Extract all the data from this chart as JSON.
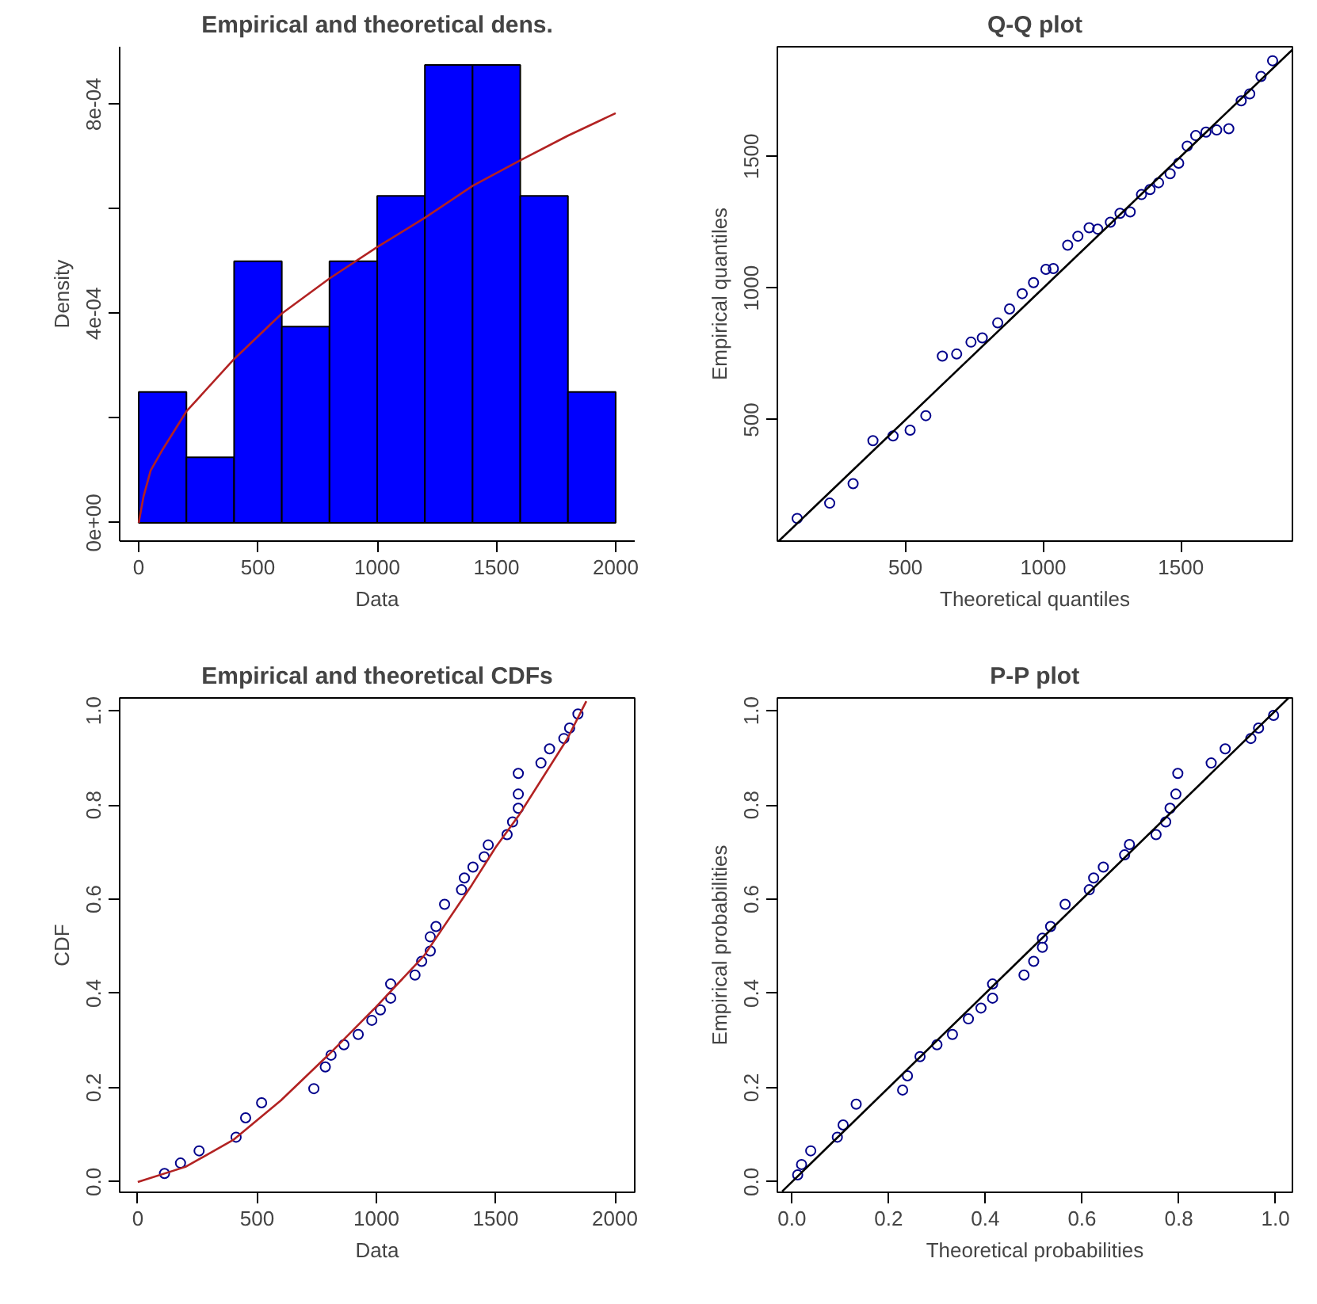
{
  "chart_data": [
    {
      "type": "histogram",
      "title": "Empirical and theoretical dens.",
      "xlabel": "Data",
      "ylabel": "Density",
      "color": "#0000ff",
      "grid": false,
      "bins": [
        0,
        200,
        400,
        600,
        800,
        1000,
        1200,
        1400,
        1600,
        1800,
        2000
      ],
      "values": [
        0.00025,
        0.000125,
        0.0005,
        0.000375,
        0.0005,
        0.000625,
        0.000875,
        0.000875,
        0.000625,
        0.00025
      ],
      "xlim": [
        -80,
        2080
      ],
      "ylim": [
        -3.5e-05,
        0.00091
      ],
      "xticks": [
        0,
        500,
        1000,
        1500,
        2000
      ],
      "yticks": [
        {
          "value": 0,
          "label": "0e+00"
        },
        {
          "value": 0.0002,
          "label": null
        },
        {
          "value": 0.0004,
          "label": "4e-04"
        },
        {
          "value": 0.0006,
          "label": null
        },
        {
          "value": 0.0008,
          "label": "8e-04"
        }
      ],
      "series": [
        {
          "type": "line",
          "color": "#b22222",
          "x": [
            0,
            20,
            50,
            100,
            200,
            400,
            600,
            800,
            1000,
            1200,
            1400,
            1600,
            1800,
            2000
          ],
          "values": [
            0,
            5e-05,
            0.0001,
            0.00014,
            0.000213,
            0.000313,
            0.0004,
            0.000467,
            0.000527,
            0.000583,
            0.000644,
            0.000693,
            0.00074,
            0.000783
          ]
        }
      ]
    },
    {
      "type": "scatter",
      "title": "Q-Q plot",
      "xlabel": "Theoretical quantiles",
      "ylabel": "Empirical quantiles",
      "grid": false,
      "xlim": [
        35,
        1905
      ],
      "ylim": [
        40,
        1916
      ],
      "xticks": [
        500,
        1000,
        1500
      ],
      "yticks": [
        500,
        1000,
        1500
      ],
      "series": [
        {
          "type": "scatter",
          "marker": "circle",
          "color": "#00008b",
          "x": [
            107,
            225,
            310,
            382,
            455,
            517,
            574,
            634,
            686,
            738,
            779,
            835,
            878,
            924,
            965,
            1010,
            1037,
            1089,
            1126,
            1167,
            1198,
            1244,
            1279,
            1316,
            1357,
            1388,
            1419,
            1461,
            1492,
            1523,
            1554,
            1591,
            1630,
            1674,
            1719,
            1750,
            1791,
            1833
          ],
          "values": [
            126,
            184,
            258,
            421,
            439,
            461,
            516,
            742,
            750,
            795,
            811,
            868,
            921,
            979,
            1021,
            1071,
            1074,
            1163,
            1197,
            1229,
            1224,
            1250,
            1284,
            1289,
            1355,
            1374,
            1400,
            1434,
            1474,
            1539,
            1579,
            1592,
            1600,
            1605,
            1711,
            1737,
            1803,
            1863
          ]
        },
        {
          "type": "line",
          "color": "#000000",
          "x": [
            40,
            1905
          ],
          "values": [
            40,
            1905
          ]
        }
      ]
    },
    {
      "type": "scatter",
      "title": "Empirical and theoretical CDFs",
      "xlabel": "Data",
      "ylabel": "CDF",
      "grid": false,
      "xlim": [
        -76,
        2083
      ],
      "ylim": [
        -0.022,
        1.027
      ],
      "xticks": [
        0,
        500,
        1000,
        1500,
        2000
      ],
      "yticks": [
        {
          "value": 0,
          "label": "0.0"
        },
        0.2,
        0.4,
        0.6,
        0.8,
        {
          "value": 1,
          "label": "1.0"
        }
      ],
      "series": [
        {
          "type": "scatter",
          "marker": "circle",
          "color": "#00008b",
          "x": [
            112,
            179,
            257,
            412,
            452,
            519,
            738,
            786,
            810,
            864,
            924,
            981,
            1017,
            1060,
            1060,
            1162,
            1190,
            1226,
            1226,
            1250,
            1286,
            1357,
            1369,
            1405,
            1452,
            1469,
            1548,
            1571,
            1595,
            1595,
            1595,
            1690,
            1726,
            1786,
            1810,
            1845
          ],
          "values": [
            0.018,
            0.04,
            0.066,
            0.095,
            0.136,
            0.168,
            0.198,
            0.244,
            0.269,
            0.291,
            0.313,
            0.343,
            0.365,
            0.39,
            0.42,
            0.439,
            0.468,
            0.49,
            0.52,
            0.542,
            0.589,
            0.62,
            0.645,
            0.668,
            0.69,
            0.715,
            0.737,
            0.764,
            0.793,
            0.823,
            0.867,
            0.889,
            0.919,
            0.941,
            0.963,
            0.993
          ]
        },
        {
          "type": "line",
          "color": "#b22222",
          "x": [
            0,
            200,
            400,
            600,
            800,
            1000,
            1200,
            1400,
            1500,
            1600,
            1800,
            1880
          ],
          "values": [
            0,
            0.032,
            0.089,
            0.173,
            0.27,
            0.372,
            0.48,
            0.63,
            0.71,
            0.78,
            0.94,
            1.02
          ]
        }
      ]
    },
    {
      "type": "scatter",
      "title": "P-P plot",
      "xlabel": "Theoretical probabilities",
      "ylabel": "Empirical probabilities",
      "grid": false,
      "xlim": [
        -0.03,
        1.035
      ],
      "ylim": [
        -0.022,
        1.027
      ],
      "xticks": [
        {
          "value": 0,
          "label": "0.0"
        },
        0.2,
        0.4,
        0.6,
        0.8,
        {
          "value": 1,
          "label": "1.0"
        }
      ],
      "yticks": [
        {
          "value": 0,
          "label": "0.0"
        },
        0.2,
        0.4,
        0.6,
        0.8,
        {
          "value": 1,
          "label": "1.0"
        }
      ],
      "series": [
        {
          "type": "scatter",
          "marker": "circle",
          "color": "#00008b",
          "x": [
            0.012,
            0.02,
            0.039,
            0.094,
            0.106,
            0.133,
            0.229,
            0.239,
            0.265,
            0.3,
            0.332,
            0.365,
            0.391,
            0.415,
            0.415,
            0.48,
            0.5,
            0.518,
            0.518,
            0.535,
            0.565,
            0.615,
            0.624,
            0.644,
            0.688,
            0.698,
            0.753,
            0.773,
            0.782,
            0.794,
            0.798,
            0.867,
            0.896,
            0.949,
            0.965,
            0.996
          ],
          "values": [
            0.015,
            0.037,
            0.066,
            0.095,
            0.121,
            0.165,
            0.195,
            0.225,
            0.266,
            0.291,
            0.313,
            0.346,
            0.369,
            0.39,
            0.42,
            0.439,
            0.468,
            0.498,
            0.517,
            0.542,
            0.589,
            0.62,
            0.645,
            0.668,
            0.694,
            0.716,
            0.737,
            0.764,
            0.793,
            0.823,
            0.867,
            0.889,
            0.919,
            0.941,
            0.963,
            0.99
          ]
        },
        {
          "type": "line",
          "color": "#000000",
          "x": [
            -0.02,
            1.027
          ],
          "values": [
            -0.02,
            1.027
          ]
        }
      ]
    }
  ]
}
